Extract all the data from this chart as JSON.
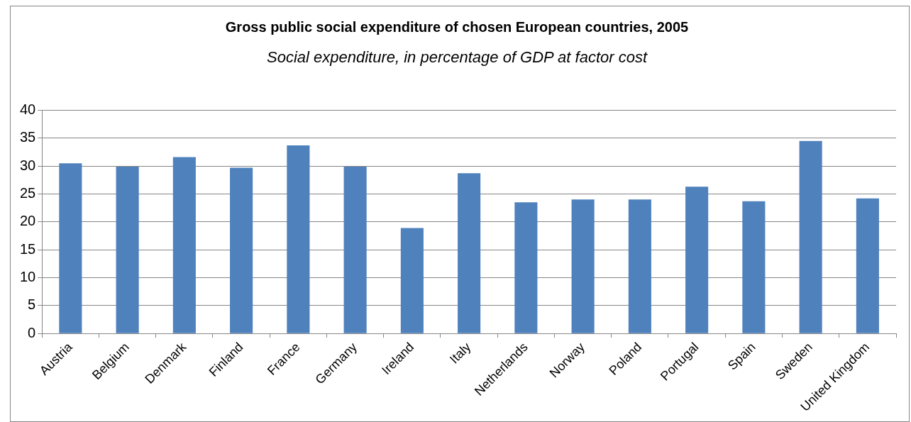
{
  "chart_data": {
    "type": "bar",
    "title": "Gross public social expenditure of chosen European countries, 2005",
    "subtitle": "Social expenditure, in percentage of GDP at factor cost",
    "categories": [
      "Austria",
      "Belgium",
      "Denmark",
      "Finland",
      "France",
      "Germany",
      "Ireland",
      "Italy",
      "Netherlands",
      "Norway",
      "Poland",
      "Portugal",
      "Spain",
      "Sweden",
      "United Kingdom"
    ],
    "values": [
      30.5,
      29.9,
      31.6,
      29.7,
      33.7,
      29.9,
      18.9,
      28.7,
      23.5,
      24.0,
      24.0,
      26.3,
      23.7,
      34.5,
      24.2
    ],
    "color": "#4f81bd",
    "ylim": [
      0,
      40
    ],
    "yticks": [
      0,
      5,
      10,
      15,
      20,
      25,
      30,
      35,
      40
    ],
    "grid": "y",
    "legend": false
  }
}
